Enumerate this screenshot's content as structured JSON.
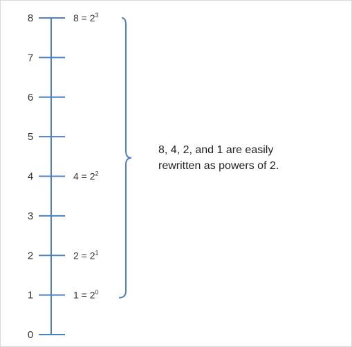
{
  "number_line": {
    "tick_labels": [
      "0",
      "1",
      "2",
      "3",
      "4",
      "5",
      "6",
      "7",
      "8"
    ],
    "equations": [
      {
        "value": 8,
        "base_text": "8 = 2",
        "exponent": "3"
      },
      {
        "value": 4,
        "base_text": "4 = 2",
        "exponent": "2"
      },
      {
        "value": 2,
        "base_text": "2 = 2",
        "exponent": "1"
      },
      {
        "value": 1,
        "base_text": "1 = 2",
        "exponent": "0"
      }
    ],
    "range": [
      0,
      8
    ],
    "line_color": "#4f81bd"
  },
  "annotation": {
    "line1": "8, 4, 2, and 1 are easily",
    "line2": "rewritten as powers of 2."
  }
}
